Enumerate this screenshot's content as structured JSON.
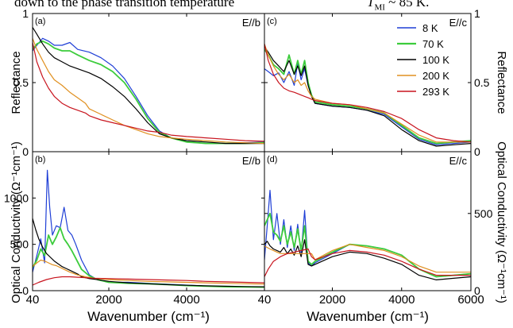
{
  "caption": {
    "left": "down to the phase transition temperature",
    "symbol": "T",
    "subscript": "MI",
    "right": "~ 85 K."
  },
  "chart_data": [
    {
      "panel_label": "(a)",
      "tag": "E//b",
      "type": "line",
      "ylabel": "Reflectance",
      "ylim": [
        0,
        1
      ],
      "yticks": [
        "0",
        "0.5",
        "1"
      ],
      "xlim": [
        40,
        6000
      ],
      "xticks": [
        "40",
        "2000",
        "4000",
        "6000"
      ],
      "xlabel": "",
      "series": [
        {
          "name": "8 K",
          "x": [
            40,
            150,
            300,
            450,
            600,
            800,
            1000,
            1200,
            1500,
            1800,
            2100,
            2400,
            2700,
            3000,
            3300,
            3600,
            4000,
            4500,
            5000,
            5500,
            6000
          ],
          "y": [
            0.73,
            0.77,
            0.82,
            0.8,
            0.77,
            0.77,
            0.79,
            0.74,
            0.72,
            0.68,
            0.62,
            0.53,
            0.4,
            0.26,
            0.15,
            0.1,
            0.07,
            0.06,
            0.06,
            0.065,
            0.07
          ]
        },
        {
          "name": "70 K",
          "x": [
            40,
            150,
            300,
            450,
            600,
            800,
            1000,
            1200,
            1500,
            1800,
            2100,
            2400,
            2700,
            3000,
            3300,
            3600,
            4000,
            4500,
            5000,
            5500,
            6000
          ],
          "y": [
            0.74,
            0.78,
            0.8,
            0.78,
            0.75,
            0.73,
            0.73,
            0.7,
            0.66,
            0.63,
            0.58,
            0.5,
            0.38,
            0.24,
            0.14,
            0.1,
            0.07,
            0.06,
            0.06,
            0.06,
            0.065
          ]
        },
        {
          "name": "100 K",
          "x": [
            40,
            150,
            300,
            450,
            600,
            800,
            1000,
            1200,
            1500,
            1800,
            2100,
            2400,
            2700,
            3000,
            3300,
            3600,
            4000,
            4500,
            5000,
            5500,
            6000
          ],
          "y": [
            0.9,
            0.85,
            0.78,
            0.72,
            0.68,
            0.65,
            0.62,
            0.6,
            0.57,
            0.53,
            0.47,
            0.4,
            0.31,
            0.21,
            0.13,
            0.1,
            0.08,
            0.07,
            0.06,
            0.06,
            0.06
          ]
        },
        {
          "name": "200 K",
          "x": [
            40,
            150,
            300,
            450,
            600,
            800,
            1000,
            1200,
            1400,
            1500,
            1800,
            2100,
            2400,
            2700,
            3000,
            3300,
            3600,
            4000,
            4500,
            5000,
            5500,
            6000
          ],
          "y": [
            0.82,
            0.74,
            0.66,
            0.58,
            0.52,
            0.48,
            0.43,
            0.39,
            0.35,
            0.31,
            0.27,
            0.23,
            0.19,
            0.16,
            0.13,
            0.11,
            0.1,
            0.09,
            0.08,
            0.07,
            0.065,
            0.06
          ]
        },
        {
          "name": "293 K",
          "x": [
            40,
            150,
            300,
            450,
            600,
            800,
            1000,
            1200,
            1400,
            1500,
            1800,
            2100,
            2400,
            2700,
            3000,
            3300,
            3600,
            4000,
            4500,
            5000,
            5500,
            6000
          ],
          "y": [
            0.79,
            0.65,
            0.54,
            0.46,
            0.4,
            0.35,
            0.32,
            0.3,
            0.28,
            0.26,
            0.23,
            0.21,
            0.19,
            0.17,
            0.15,
            0.14,
            0.12,
            0.11,
            0.1,
            0.09,
            0.08,
            0.075
          ]
        }
      ]
    },
    {
      "panel_label": "(c)",
      "tag": "E//c",
      "type": "line",
      "ylabel": "Reflectance",
      "ylim": [
        0,
        1
      ],
      "yticks": [
        "0",
        "0.5",
        "1"
      ],
      "xlim": [
        40,
        6000
      ],
      "xticks": [
        "40",
        "2000",
        "4000",
        "6000"
      ],
      "xlabel": "",
      "series": [
        {
          "name": "8 K",
          "x": [
            40,
            150,
            300,
            450,
            600,
            750,
            900,
            1000,
            1100,
            1200,
            1300,
            1400,
            1500,
            2000,
            2500,
            3000,
            3500,
            4000,
            4500,
            5000,
            5500,
            6000
          ],
          "y": [
            0.6,
            0.58,
            0.55,
            0.57,
            0.5,
            0.58,
            0.48,
            0.64,
            0.52,
            0.6,
            0.48,
            0.4,
            0.35,
            0.33,
            0.32,
            0.3,
            0.27,
            0.18,
            0.09,
            0.05,
            0.06,
            0.07
          ]
        },
        {
          "name": "70 K",
          "x": [
            40,
            150,
            300,
            450,
            600,
            750,
            900,
            1000,
            1100,
            1200,
            1300,
            1400,
            1500,
            2000,
            2500,
            3000,
            3500,
            4000,
            4500,
            5000,
            5500,
            6000
          ],
          "y": [
            0.74,
            0.7,
            0.63,
            0.6,
            0.56,
            0.7,
            0.56,
            0.66,
            0.56,
            0.66,
            0.5,
            0.41,
            0.36,
            0.34,
            0.33,
            0.31,
            0.28,
            0.19,
            0.1,
            0.06,
            0.07,
            0.08
          ]
        },
        {
          "name": "100 K",
          "x": [
            40,
            150,
            300,
            450,
            600,
            750,
            900,
            1000,
            1100,
            1200,
            1300,
            1400,
            1500,
            2000,
            2500,
            3000,
            3500,
            4000,
            4500,
            5000,
            5500,
            6000
          ],
          "y": [
            0.76,
            0.72,
            0.66,
            0.62,
            0.58,
            0.66,
            0.56,
            0.62,
            0.55,
            0.62,
            0.48,
            0.4,
            0.35,
            0.33,
            0.32,
            0.3,
            0.26,
            0.16,
            0.08,
            0.04,
            0.05,
            0.06
          ]
        },
        {
          "name": "200 K",
          "x": [
            40,
            150,
            300,
            450,
            600,
            750,
            900,
            1000,
            1100,
            1200,
            1300,
            1400,
            1500,
            2000,
            2500,
            3000,
            3500,
            4000,
            4500,
            5000,
            5500,
            6000
          ],
          "y": [
            0.78,
            0.7,
            0.62,
            0.56,
            0.52,
            0.56,
            0.5,
            0.52,
            0.48,
            0.5,
            0.44,
            0.4,
            0.38,
            0.35,
            0.34,
            0.31,
            0.28,
            0.2,
            0.12,
            0.07,
            0.07,
            0.07
          ]
        },
        {
          "name": "293 K",
          "x": [
            40,
            150,
            300,
            450,
            600,
            750,
            900,
            1000,
            1100,
            1200,
            1300,
            1400,
            1500,
            2000,
            2500,
            3000,
            3500,
            4000,
            4500,
            5000,
            5500,
            6000
          ],
          "y": [
            0.78,
            0.66,
            0.56,
            0.5,
            0.46,
            0.44,
            0.43,
            0.42,
            0.41,
            0.4,
            0.39,
            0.38,
            0.37,
            0.35,
            0.34,
            0.32,
            0.29,
            0.24,
            0.16,
            0.1,
            0.08,
            0.07
          ]
        }
      ],
      "legend": {
        "placement": "top-right",
        "entries": [
          "8 K",
          "70 K",
          "100 K",
          "200 K",
          "293 K"
        ]
      }
    },
    {
      "panel_label": "(b)",
      "tag": "E//b",
      "type": "line",
      "ylabel": "Optical Conductivity (Ω⁻¹cm⁻¹)",
      "ylim": [
        0,
        1500
      ],
      "yticks": [
        "0",
        "500",
        "1000"
      ],
      "xlim": [
        40,
        6000
      ],
      "xticks": [
        "40",
        "2000",
        "4000",
        "6000"
      ],
      "xlabel": "Wavenumber (cm⁻¹)",
      "series": [
        {
          "name": "8 K",
          "x": [
            40,
            150,
            250,
            350,
            420,
            480,
            550,
            650,
            750,
            850,
            950,
            1050,
            1150,
            1300,
            1500,
            1700,
            2000,
            2500,
            3000,
            3500,
            4000,
            4500,
            5000,
            5500,
            6000
          ],
          "y": [
            200,
            380,
            560,
            300,
            1300,
            900,
            600,
            700,
            680,
            900,
            650,
            600,
            500,
            330,
            170,
            120,
            90,
            90,
            80,
            70,
            60,
            50,
            45,
            40,
            38
          ]
        },
        {
          "name": "70 K",
          "x": [
            40,
            150,
            250,
            350,
            450,
            550,
            650,
            750,
            850,
            950,
            1050,
            1150,
            1300,
            1500,
            1700,
            2000,
            2500,
            3000,
            3500,
            4000,
            4500,
            5000,
            5500,
            6000
          ],
          "y": [
            250,
            330,
            450,
            380,
            600,
            500,
            580,
            680,
            560,
            500,
            430,
            350,
            230,
            160,
            120,
            90,
            80,
            75,
            65,
            55,
            48,
            42,
            40,
            38
          ]
        },
        {
          "name": "100 K",
          "x": [
            40,
            120,
            200,
            300,
            400,
            500,
            600,
            700,
            800,
            900,
            1000,
            1100,
            1200,
            1300,
            1500,
            1700,
            2000,
            2500,
            3000,
            3500,
            4000,
            4500,
            5000,
            5500,
            6000
          ],
          "y": [
            780,
            660,
            560,
            470,
            400,
            360,
            320,
            290,
            260,
            240,
            220,
            200,
            180,
            150,
            130,
            120,
            100,
            85,
            75,
            65,
            58,
            52,
            48,
            45,
            42
          ]
        },
        {
          "name": "200 K",
          "x": [
            40,
            150,
            250,
            350,
            450,
            550,
            650,
            750,
            850,
            1000,
            1200,
            1400,
            1600,
            2000,
            2500,
            3000,
            3500,
            4000,
            4500,
            5000,
            5500,
            6000
          ],
          "y": [
            260,
            300,
            330,
            320,
            300,
            280,
            270,
            250,
            230,
            200,
            170,
            150,
            135,
            120,
            110,
            100,
            95,
            90,
            85,
            80,
            75,
            70
          ]
        },
        {
          "name": "293 K",
          "x": [
            40,
            200,
            400,
            600,
            800,
            1000,
            1200,
            1400,
            1600,
            2000,
            2500,
            3000,
            3500,
            4000,
            4500,
            5000,
            5500,
            6000
          ],
          "y": [
            60,
            90,
            120,
            140,
            150,
            150,
            145,
            140,
            135,
            130,
            125,
            120,
            115,
            110,
            100,
            95,
            90,
            85
          ]
        }
      ]
    },
    {
      "panel_label": "(d)",
      "tag": "E//c",
      "type": "line",
      "ylabel": "Optical Conductivity (Ω⁻¹cm⁻¹)",
      "ylim": [
        0,
        900
      ],
      "yticks": [
        "0",
        "500"
      ],
      "xlim": [
        40,
        6000
      ],
      "xticks": [
        "40",
        "2000",
        "4000",
        "6000"
      ],
      "xlabel": "Wavenumber (cm⁻¹)",
      "series": [
        {
          "name": "8 K",
          "x": [
            40,
            120,
            200,
            300,
            400,
            500,
            600,
            700,
            800,
            900,
            1000,
            1100,
            1200,
            1300,
            1400,
            1500,
            2000,
            2500,
            3000,
            3500,
            4000,
            4500,
            5000,
            5500,
            6000
          ],
          "y": [
            200,
            420,
            650,
            330,
            500,
            300,
            460,
            280,
            420,
            260,
            430,
            240,
            520,
            180,
            160,
            180,
            240,
            300,
            290,
            270,
            230,
            140,
            90,
            100,
            110
          ]
        },
        {
          "name": "70 K",
          "x": [
            40,
            120,
            200,
            300,
            400,
            500,
            600,
            700,
            800,
            900,
            1000,
            1100,
            1200,
            1300,
            1400,
            1500,
            2000,
            2500,
            3000,
            3500,
            4000,
            4500,
            5000,
            5500,
            6000
          ],
          "y": [
            420,
            460,
            500,
            380,
            360,
            320,
            420,
            300,
            380,
            280,
            400,
            260,
            420,
            190,
            170,
            190,
            250,
            300,
            290,
            270,
            230,
            140,
            90,
            100,
            110
          ]
        },
        {
          "name": "100 K",
          "x": [
            40,
            120,
            200,
            300,
            400,
            500,
            600,
            700,
            800,
            900,
            1000,
            1100,
            1200,
            1300,
            1400,
            1500,
            2000,
            2500,
            3000,
            3500,
            4000,
            4500,
            5000,
            5500,
            6000
          ],
          "y": [
            300,
            320,
            290,
            270,
            260,
            250,
            280,
            240,
            270,
            230,
            290,
            220,
            330,
            170,
            160,
            170,
            220,
            250,
            240,
            210,
            170,
            100,
            70,
            80,
            90
          ]
        },
        {
          "name": "200 K",
          "x": [
            40,
            120,
            200,
            300,
            400,
            500,
            600,
            800,
            1000,
            1200,
            1400,
            1500,
            2000,
            2500,
            3000,
            3500,
            4000,
            4500,
            5000,
            5500,
            6000
          ],
          "y": [
            290,
            280,
            270,
            260,
            250,
            240,
            240,
            240,
            240,
            240,
            240,
            200,
            260,
            300,
            280,
            260,
            220,
            160,
            120,
            120,
            120
          ]
        },
        {
          "name": "293 K",
          "x": [
            40,
            150,
            300,
            500,
            700,
            900,
            1100,
            1300,
            1400,
            1500,
            2000,
            2500,
            3000,
            3500,
            4000,
            4500,
            5000,
            5500,
            6000
          ],
          "y": [
            90,
            140,
            190,
            220,
            240,
            250,
            260,
            270,
            220,
            200,
            240,
            260,
            250,
            230,
            190,
            140,
            100,
            100,
            100
          ]
        }
      ]
    }
  ],
  "colors": {
    "8 K": "#1f3fd6",
    "70 K": "#3ccc3c",
    "100 K": "#000000",
    "200 K": "#e09020",
    "293 K": "#c8141e"
  }
}
